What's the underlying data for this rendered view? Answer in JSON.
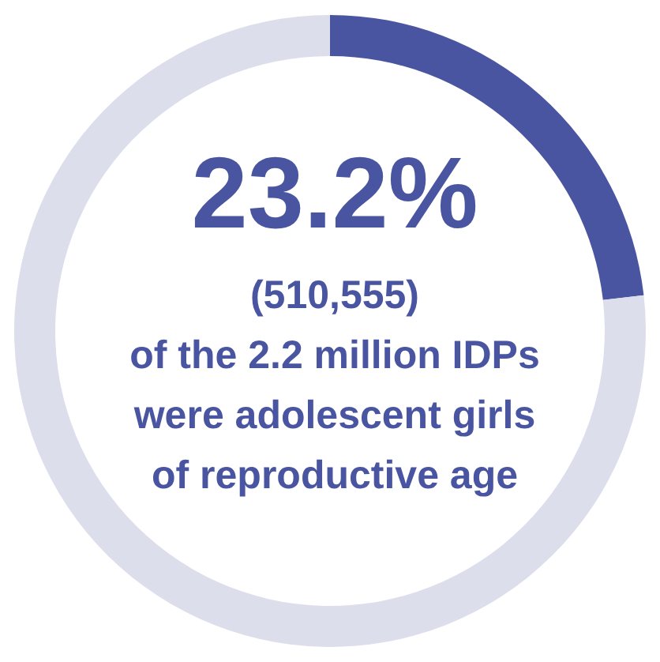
{
  "chart_data": {
    "type": "donut",
    "categories": [
      null,
      null
    ],
    "values": [
      23.2,
      76.8
    ],
    "colors": [
      "#4a55a2",
      "#dcdeec"
    ],
    "annotations": [
      "23.2%",
      "(510,555)",
      "of the 2.2 million IDPs",
      "were adolescent girls",
      "of reproductive age"
    ]
  }
}
